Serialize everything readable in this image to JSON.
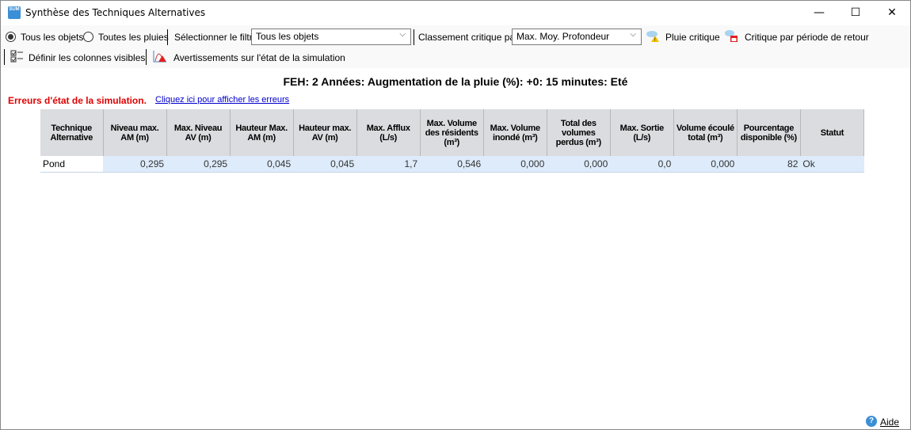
{
  "window": {
    "title": "Synthèse des Techniques Alternatives",
    "icon_text": "SUM",
    "minimize": "—",
    "maximize": "☐",
    "close": "✕"
  },
  "toolbar": {
    "radio_all_objects": "Tous les objets",
    "radio_all_rains": "Toutes les pluies",
    "selected_radio": "Tous les objets",
    "filter_label": "Sélectionner le filtre",
    "filter_value": "Tous les objets",
    "critical_label": "Classement critique par:",
    "critical_value": "Max. Moy. Profondeur",
    "critical_rain": "Pluie critique",
    "critical_return": "Critique par période de retour",
    "define_columns": "Définir les colonnes visibles",
    "warnings": "Avertissements sur l'état de la simulation"
  },
  "heading": "FEH: 2 Années: Augmentation de la pluie (%): +0: 15 minutes: Eté",
  "errors": {
    "label": "Erreurs d'état de la simulation.",
    "link": "Cliquez ici pour afficher les erreurs"
  },
  "table": {
    "columns": [
      "Technique Alternative",
      "Niveau max. AM (m)",
      "Max. Niveau AV (m)",
      "Hauteur Max. AM (m)",
      "Hauteur max. AV (m)",
      "Max. Afflux (L/s)",
      "Max. Volume des résidents (m³)",
      "Max. Volume inondé (m³)",
      "Total des volumes perdus (m³)",
      "Max. Sortie (L/s)",
      "Volume écoulé total (m³)",
      "Pourcentage disponible (%)",
      "Statut"
    ],
    "rows": [
      [
        "Pond",
        "0,295",
        "0,295",
        "0,045",
        "0,045",
        "1,7",
        "0,546",
        "0,000",
        "0,000",
        "0,0",
        "0,000",
        "82",
        "Ok"
      ]
    ]
  },
  "footer": {
    "help": "Aide",
    "help_icon": "?"
  }
}
